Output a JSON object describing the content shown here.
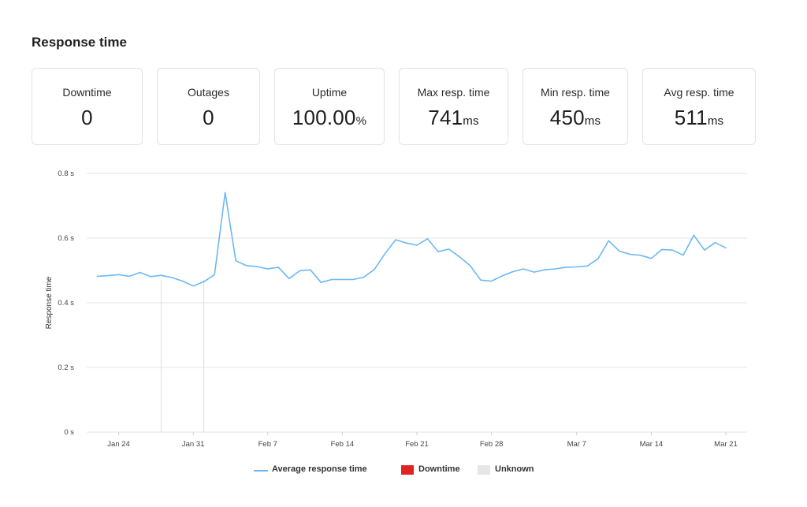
{
  "header": {
    "title": "Response time"
  },
  "stats": [
    {
      "label": "Downtime",
      "value": "0",
      "unit": ""
    },
    {
      "label": "Outages",
      "value": "0",
      "unit": ""
    },
    {
      "label": "Uptime",
      "value": "100.00",
      "unit": "%"
    },
    {
      "label": "Max resp. time",
      "value": "741",
      "unit": "ms"
    },
    {
      "label": "Min resp. time",
      "value": "450",
      "unit": "ms"
    },
    {
      "label": "Avg resp. time",
      "value": "511",
      "unit": "ms"
    }
  ],
  "colors": {
    "line": "#6cb8f4",
    "downtime": "#e02424",
    "unknown": "#e6e6e6",
    "grid": "#e6e6e6"
  },
  "chart_data": {
    "type": "line",
    "ylabel": "Response time",
    "ylim": [
      0,
      0.8
    ],
    "yticks": [
      {
        "value": 0,
        "label": "0 s"
      },
      {
        "value": 0.2,
        "label": "0.2 s"
      },
      {
        "value": 0.4,
        "label": "0.4 s"
      },
      {
        "value": 0.6,
        "label": "0.6 s"
      },
      {
        "value": 0.8,
        "label": "0.8 s"
      }
    ],
    "xrange": [
      "2024-01-21",
      "2024-03-23"
    ],
    "xticks": [
      {
        "date": "2024-01-24",
        "label": "Jan 24"
      },
      {
        "date": "2024-01-31",
        "label": "Jan 31"
      },
      {
        "date": "2024-02-07",
        "label": "Feb 7"
      },
      {
        "date": "2024-02-14",
        "label": "Feb 14"
      },
      {
        "date": "2024-02-21",
        "label": "Feb 21"
      },
      {
        "date": "2024-02-28",
        "label": "Feb 28"
      },
      {
        "date": "2024-03-07",
        "label": "Mar 7"
      },
      {
        "date": "2024-03-14",
        "label": "Mar 14"
      },
      {
        "date": "2024-03-21",
        "label": "Mar 21"
      }
    ],
    "grid": true,
    "legend_position": "bottom",
    "markers": [
      "2024-01-28",
      "2024-02-01"
    ],
    "series": [
      {
        "name": "Average response time",
        "points": [
          [
            "2024-01-22",
            0.482
          ],
          [
            "2024-01-23",
            0.484
          ],
          [
            "2024-01-24",
            0.487
          ],
          [
            "2024-01-25",
            0.482
          ],
          [
            "2024-01-26",
            0.494
          ],
          [
            "2024-01-27",
            0.481
          ],
          [
            "2024-01-28",
            0.485
          ],
          [
            "2024-01-29",
            0.478
          ],
          [
            "2024-01-30",
            0.467
          ],
          [
            "2024-01-31",
            0.452
          ],
          [
            "2024-02-01",
            0.465
          ],
          [
            "2024-02-02",
            0.487
          ],
          [
            "2024-02-03",
            0.741
          ],
          [
            "2024-02-04",
            0.53
          ],
          [
            "2024-02-05",
            0.515
          ],
          [
            "2024-02-06",
            0.512
          ],
          [
            "2024-02-07",
            0.505
          ],
          [
            "2024-02-08",
            0.51
          ],
          [
            "2024-02-09",
            0.475
          ],
          [
            "2024-02-10",
            0.499
          ],
          [
            "2024-02-11",
            0.502
          ],
          [
            "2024-02-12",
            0.463
          ],
          [
            "2024-02-13",
            0.472
          ],
          [
            "2024-02-14",
            0.472
          ],
          [
            "2024-02-15",
            0.472
          ],
          [
            "2024-02-16",
            0.479
          ],
          [
            "2024-02-17",
            0.503
          ],
          [
            "2024-02-18",
            0.552
          ],
          [
            "2024-02-19",
            0.595
          ],
          [
            "2024-02-20",
            0.585
          ],
          [
            "2024-02-21",
            0.578
          ],
          [
            "2024-02-22",
            0.598
          ],
          [
            "2024-02-23",
            0.558
          ],
          [
            "2024-02-24",
            0.566
          ],
          [
            "2024-02-25",
            0.542
          ],
          [
            "2024-02-26",
            0.515
          ],
          [
            "2024-02-27",
            0.47
          ],
          [
            "2024-02-28",
            0.467
          ],
          [
            "2024-02-29",
            0.483
          ],
          [
            "2024-03-01",
            0.496
          ],
          [
            "2024-03-02",
            0.505
          ],
          [
            "2024-03-03",
            0.495
          ],
          [
            "2024-03-04",
            0.502
          ],
          [
            "2024-03-05",
            0.505
          ],
          [
            "2024-03-06",
            0.51
          ],
          [
            "2024-03-07",
            0.511
          ],
          [
            "2024-03-08",
            0.514
          ],
          [
            "2024-03-09",
            0.536
          ],
          [
            "2024-03-10",
            0.592
          ],
          [
            "2024-03-11",
            0.56
          ],
          [
            "2024-03-12",
            0.55
          ],
          [
            "2024-03-13",
            0.547
          ],
          [
            "2024-03-14",
            0.537
          ],
          [
            "2024-03-15",
            0.565
          ],
          [
            "2024-03-16",
            0.563
          ],
          [
            "2024-03-17",
            0.547
          ],
          [
            "2024-03-18",
            0.609
          ],
          [
            "2024-03-19",
            0.563
          ],
          [
            "2024-03-20",
            0.586
          ],
          [
            "2024-03-21",
            0.57
          ]
        ]
      }
    ],
    "legend": [
      {
        "label": "Average response time",
        "kind": "line",
        "color": "#6cb8f4"
      },
      {
        "label": "Downtime",
        "kind": "box",
        "color": "#e02424"
      },
      {
        "label": "Unknown",
        "kind": "box",
        "color": "#e6e6e6"
      }
    ]
  }
}
